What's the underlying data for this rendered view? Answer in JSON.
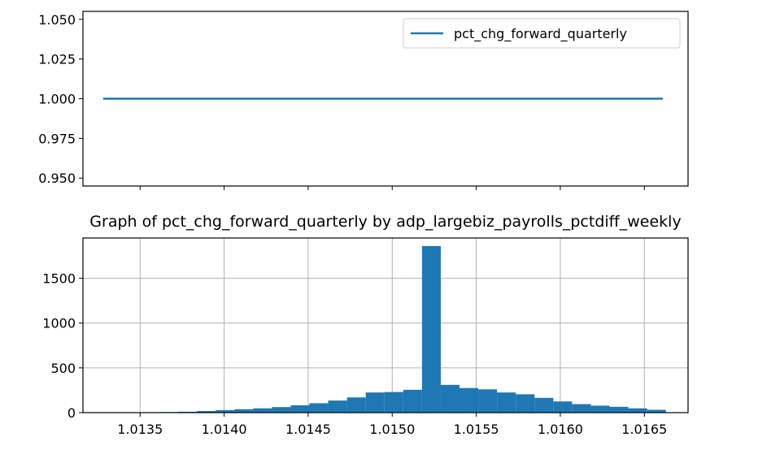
{
  "chart_data": [
    {
      "type": "line",
      "series": [
        {
          "name": "pct_chg_forward_quarterly",
          "x": [
            1.01328,
            1.01661
          ],
          "y": [
            1.0,
            1.0
          ],
          "color": "#1f77b4"
        }
      ],
      "xlim": [
        1.01316,
        1.01676
      ],
      "ylim": [
        0.945,
        1.055
      ],
      "yticks": [
        0.95,
        0.975,
        1.0,
        1.025,
        1.05
      ],
      "ytick_labels": [
        "0.950",
        "0.975",
        "1.000",
        "1.025",
        "1.050"
      ],
      "legend": {
        "position": "top-right",
        "label": "pct_chg_forward_quarterly"
      },
      "grid": false
    },
    {
      "type": "bar",
      "title": "Graph of pct_chg_forward_quarterly by adp_largebiz_payrolls_pctdiff_weekly",
      "bin_edges": [
        1.01328,
        1.0133916,
        1.0135032,
        1.0136148,
        1.0137264,
        1.013838,
        1.0139496,
        1.0140612,
        1.0141728,
        1.0142844,
        1.014396,
        1.0145076,
        1.0146192,
        1.0147308,
        1.0148424,
        1.014954,
        1.0150656,
        1.0151772,
        1.0152888,
        1.0154004,
        1.015512,
        1.0156236,
        1.0157352,
        1.0158468,
        1.0159584,
        1.01607,
        1.0161816,
        1.0162932,
        1.0164048,
        1.0165164,
        1.016628
      ],
      "values": [
        2,
        3,
        4,
        6,
        10,
        18,
        28,
        38,
        48,
        62,
        82,
        105,
        135,
        170,
        225,
        230,
        255,
        1860,
        310,
        275,
        260,
        225,
        205,
        165,
        125,
        95,
        78,
        65,
        48,
        32
      ],
      "color": "#1f77b4",
      "xlim": [
        1.01316,
        1.01676
      ],
      "ylim": [
        0,
        1950
      ],
      "xticks": [
        1.0135,
        1.014,
        1.0145,
        1.015,
        1.0155,
        1.016,
        1.0165
      ],
      "xtick_labels": [
        "1.0135",
        "1.0140",
        "1.0145",
        "1.0150",
        "1.0155",
        "1.0160",
        "1.0165"
      ],
      "yticks": [
        0,
        500,
        1000,
        1500
      ],
      "ytick_labels": [
        "0",
        "500",
        "1000",
        "1500"
      ],
      "grid": true
    }
  ]
}
